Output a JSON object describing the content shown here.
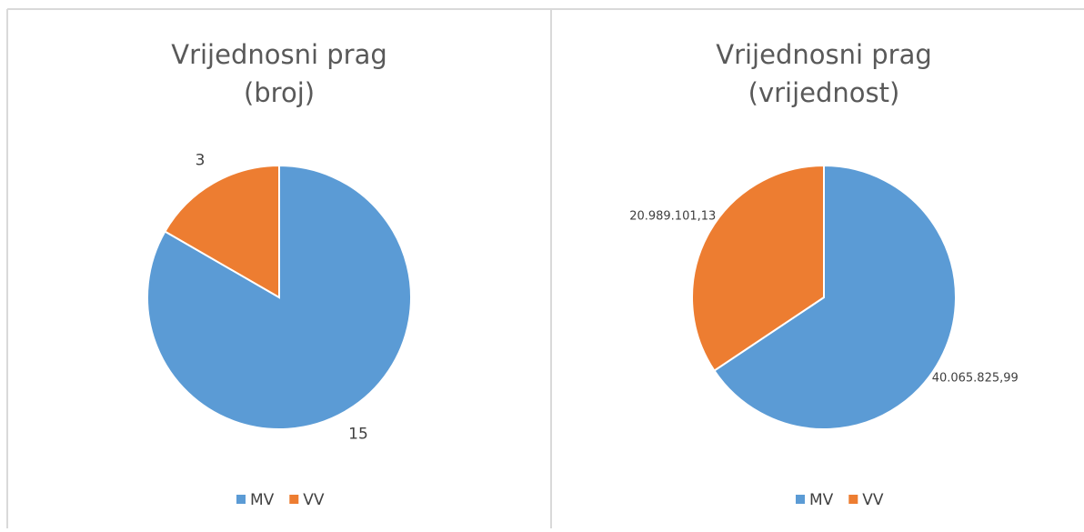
{
  "chart_data": [
    {
      "type": "pie",
      "title": [
        "Vrijednosni prag",
        "(broj)"
      ],
      "categories": [
        "MV",
        "VV"
      ],
      "values": [
        15,
        3
      ],
      "colors": [
        "#5b9bd5",
        "#ed7d31"
      ],
      "legend": "bottom"
    },
    {
      "type": "pie",
      "title": [
        "Vrijednosni prag",
        "(vrijednost)"
      ],
      "categories": [
        "MV",
        "VV"
      ],
      "values": [
        40065825.99,
        20989101.13
      ],
      "value_labels": [
        "40.065.825,99",
        "20.989.101,13"
      ],
      "colors": [
        "#5b9bd5",
        "#ed7d31"
      ],
      "legend": "bottom"
    }
  ]
}
